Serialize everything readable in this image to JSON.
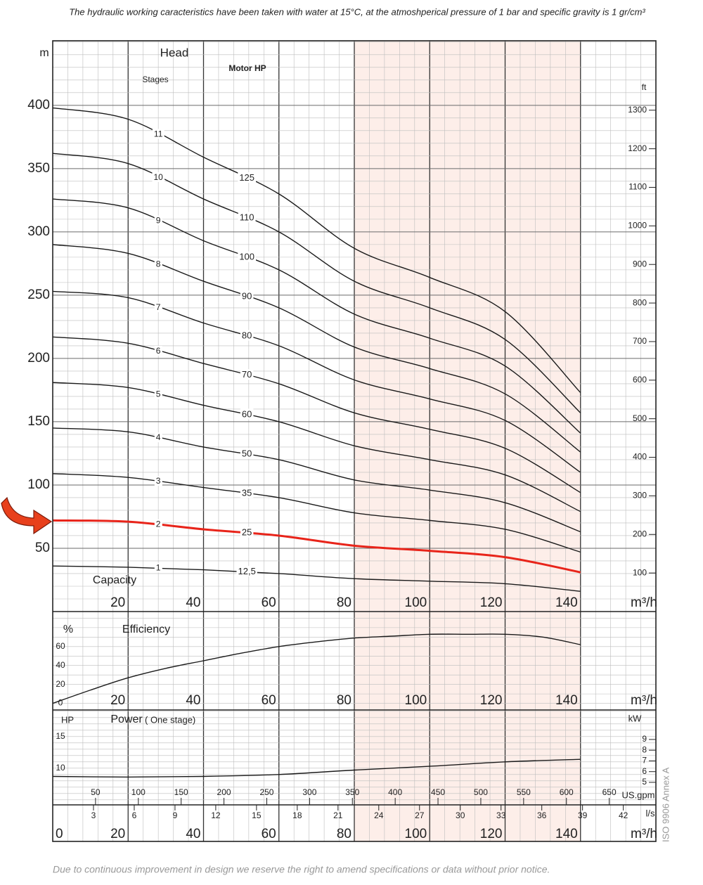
{
  "header": {
    "note": "The hydraulic working caracteristics have been taken with water at 15°C, at the atmoshperical pressure of 1 bar and specific gravity is 1 gr/cm³"
  },
  "chart_data": [
    {
      "type": "line",
      "title": "Head",
      "y_label": "m",
      "y2_label": "ft",
      "x_label": "Capacity",
      "x_unit": "m³/h",
      "series_title": "Stages",
      "label_title": "Motor HP",
      "x": [
        0,
        20,
        40,
        60,
        80,
        100,
        120,
        140
      ],
      "xlim": [
        0,
        160
      ],
      "xticks": [
        20,
        40,
        60,
        80,
        100,
        120,
        140
      ],
      "ylim": [
        0,
        451
      ],
      "yticks": [
        50,
        100,
        150,
        200,
        250,
        300,
        350,
        400
      ],
      "y2lim": [
        0,
        1480
      ],
      "y2ticks": [
        100,
        200,
        300,
        400,
        500,
        600,
        700,
        800,
        900,
        1000,
        1100,
        1200,
        1300
      ],
      "grid": true,
      "shade": [
        80,
        140
      ],
      "shade_color": "#fdeee9",
      "series": [
        {
          "name": "1",
          "label": "12,5",
          "color": "#1a1a1a",
          "values": [
            36,
            35,
            33,
            30,
            26,
            24,
            22,
            16
          ]
        },
        {
          "name": "2",
          "label": "25",
          "color": "#e8241a",
          "line_width": 3,
          "values": [
            72,
            71,
            65,
            60,
            52,
            48,
            43,
            31
          ]
        },
        {
          "name": "3",
          "label": "35",
          "color": "#1a1a1a",
          "values": [
            109,
            106,
            98,
            90,
            78,
            72,
            65,
            47
          ]
        },
        {
          "name": "4",
          "label": "50",
          "color": "#1a1a1a",
          "values": [
            145,
            142,
            130,
            120,
            104,
            96,
            86,
            63
          ]
        },
        {
          "name": "5",
          "label": "60",
          "color": "#1a1a1a",
          "values": [
            181,
            177,
            163,
            150,
            131,
            120,
            108,
            79
          ]
        },
        {
          "name": "6",
          "label": "70",
          "color": "#1a1a1a",
          "values": [
            217,
            212,
            196,
            180,
            157,
            144,
            129,
            94
          ]
        },
        {
          "name": "7",
          "label": "80",
          "color": "#1a1a1a",
          "values": [
            253,
            248,
            228,
            210,
            183,
            168,
            151,
            110
          ]
        },
        {
          "name": "8",
          "label": "90",
          "color": "#1a1a1a",
          "values": [
            290,
            283,
            261,
            240,
            209,
            192,
            172,
            126
          ]
        },
        {
          "name": "9",
          "label": "100",
          "color": "#1a1a1a",
          "values": [
            326,
            319,
            293,
            270,
            235,
            216,
            194,
            141
          ]
        },
        {
          "name": "10",
          "label": "110",
          "color": "#1a1a1a",
          "values": [
            362,
            354,
            326,
            300,
            261,
            240,
            215,
            157
          ]
        },
        {
          "name": "11",
          "label": "125",
          "color": "#1a1a1a",
          "values": [
            398,
            389,
            359,
            330,
            287,
            264,
            237,
            173
          ]
        }
      ]
    },
    {
      "type": "line",
      "title": "Efficiency",
      "y_label": "%",
      "x_unit": "m³/h",
      "x": [
        0,
        10,
        20,
        30,
        40,
        50,
        60,
        70,
        80,
        90,
        100,
        110,
        120,
        130,
        140
      ],
      "xlim": [
        0,
        160
      ],
      "xticks": [
        20,
        40,
        60,
        80,
        100,
        120,
        140
      ],
      "ylim": [
        -7,
        97
      ],
      "yticks": [
        0,
        20,
        40,
        60
      ],
      "series": [
        {
          "color": "#1a1a1a",
          "values": [
            0,
            14,
            27,
            37,
            45,
            53,
            60,
            65,
            69,
            71,
            73,
            73,
            73,
            70,
            62
          ]
        }
      ]
    },
    {
      "type": "line",
      "title": "Power",
      "subtitle": "( One stage)",
      "y_label": "HP",
      "y2_label": "kW",
      "x": [
        0,
        20,
        40,
        60,
        80,
        100,
        120,
        140
      ],
      "xlim": [
        0,
        160
      ],
      "ylim": [
        4.2,
        19.2
      ],
      "yticks": [
        10,
        15
      ],
      "y2lim": [
        2.9,
        11.75
      ],
      "y2ticks": [
        5,
        6,
        7,
        8,
        9
      ],
      "series": [
        {
          "color": "#1a1a1a",
          "values": [
            8.7,
            8.6,
            8.7,
            9.0,
            9.7,
            10.3,
            11.0,
            11.4
          ]
        }
      ]
    },
    {
      "type": "axes",
      "axes": [
        {
          "unit": "US.gpm",
          "xlim": [
            0,
            704.5
          ],
          "xticks": [
            50,
            100,
            150,
            200,
            250,
            300,
            350,
            400,
            450,
            500,
            550,
            600,
            650
          ]
        },
        {
          "unit": "l/s",
          "xlim": [
            0,
            44.4
          ],
          "xticks": [
            3,
            6,
            9,
            12,
            15,
            18,
            21,
            24,
            27,
            30,
            33,
            36,
            39,
            42
          ]
        },
        {
          "unit": "m³/h",
          "xlim": [
            0,
            160
          ],
          "xticks": [
            0,
            20,
            40,
            60,
            80,
            100,
            120,
            140
          ]
        }
      ]
    }
  ],
  "footer": {
    "note": "Due to continuous improvement in design we reserve the right to amend specifications or data without prior notice.",
    "standard": "ISO 9906 Annex A"
  }
}
